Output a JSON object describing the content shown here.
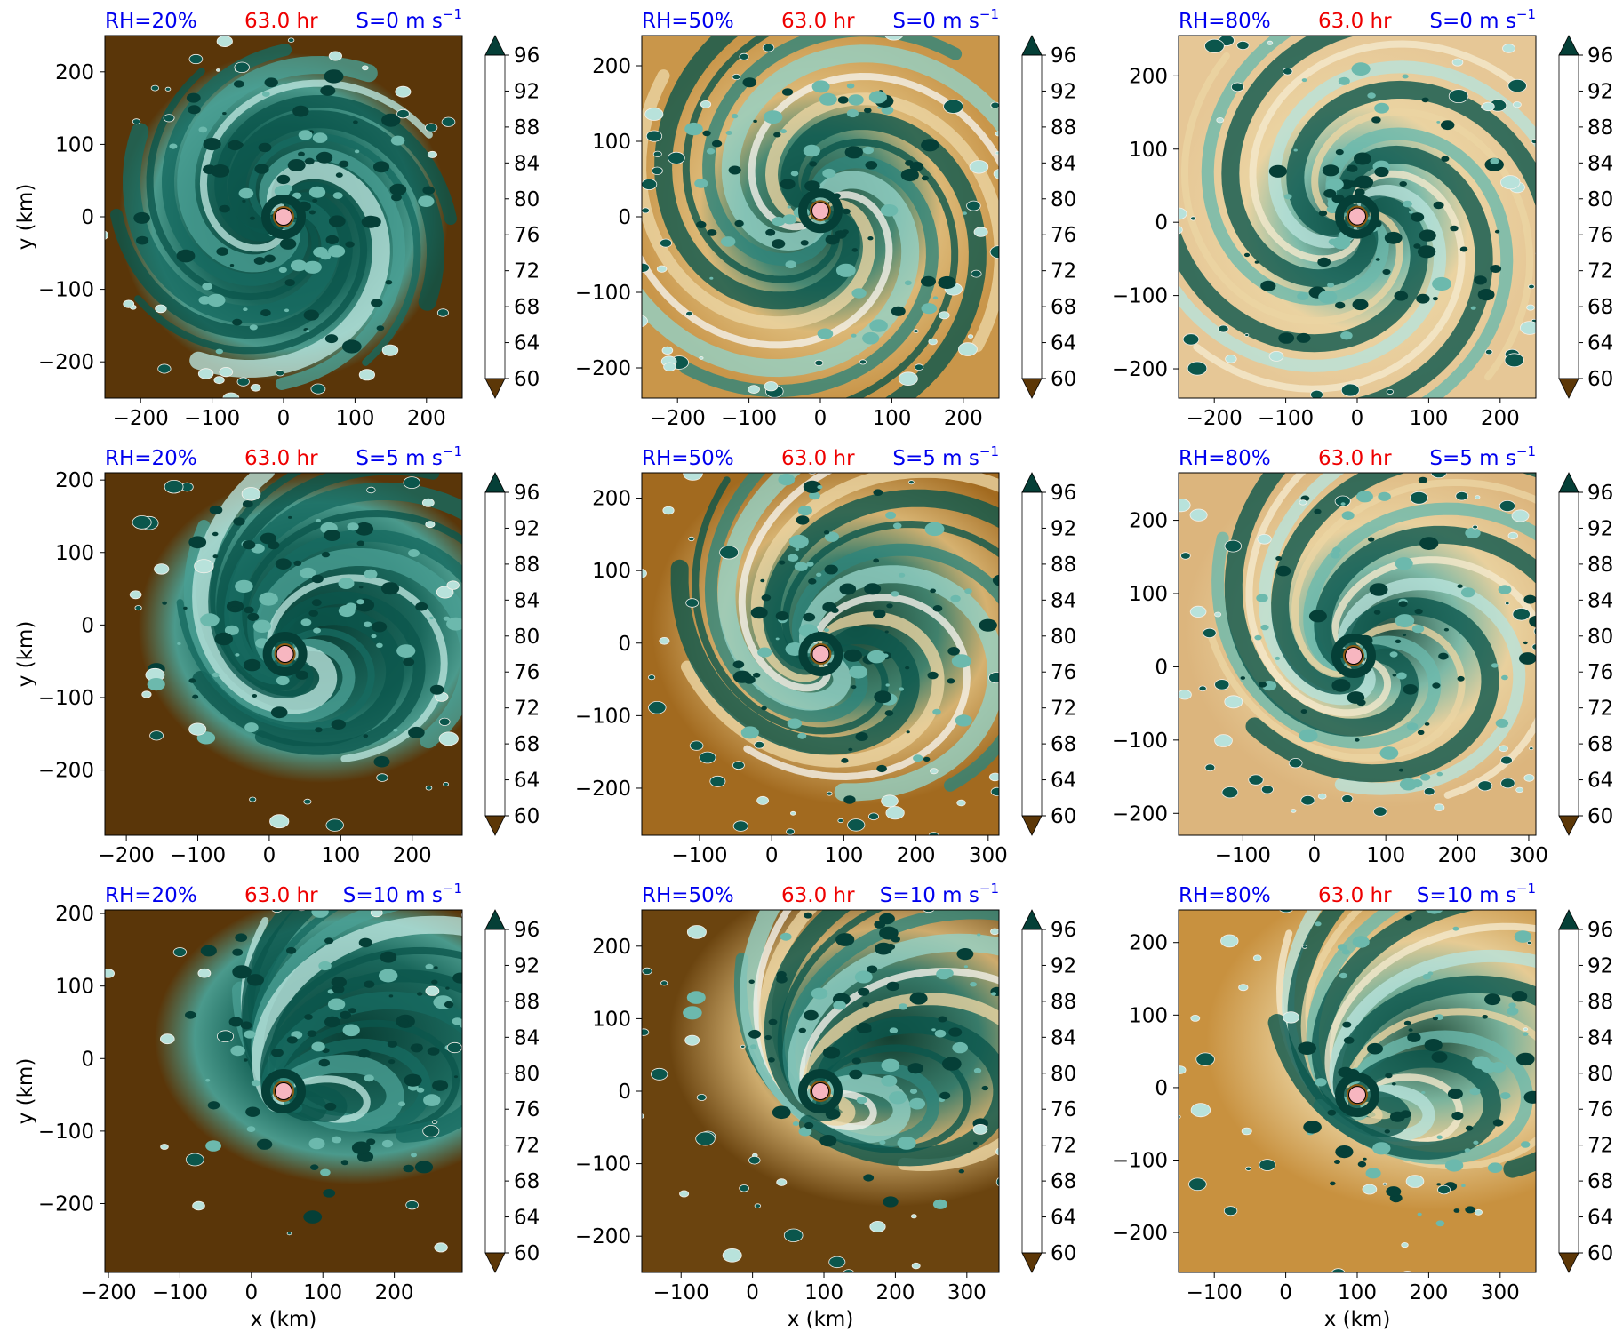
{
  "figure": {
    "colorbar_ticks": [
      60,
      64,
      68,
      72,
      76,
      80,
      84,
      88,
      92,
      96
    ],
    "colorbar_levels": [
      60,
      62,
      64,
      66,
      68,
      70,
      72,
      74,
      76,
      78,
      80,
      82,
      84,
      86,
      88,
      90,
      92,
      94,
      96,
      98
    ],
    "colorbar_colors": [
      "#5c3707",
      "#6f4710",
      "#8a5a14",
      "#a2691c",
      "#b57a2b",
      "#c38f45",
      "#d1a660",
      "#dfbe7e",
      "#ebd5a3",
      "#f4e8cc",
      "#f4f1ea",
      "#d8eeea",
      "#b8e2db",
      "#93d1c6",
      "#6cb9ad",
      "#4a9f93",
      "#2f857a",
      "#176a60",
      "#0b564c",
      "#053f37"
    ],
    "xlabel": "x (km)",
    "ylabel": "y (km)"
  },
  "chart_data": [
    {
      "type": "heatmap",
      "rh_label": "RH=20%",
      "time_label": "63.0 hr",
      "shear_label": "S=0 m s",
      "shear_sup": "−1",
      "xlim": [
        -250,
        250
      ],
      "ylim": [
        -250,
        250
      ],
      "xticks": [
        -200,
        -100,
        0,
        100,
        200
      ],
      "yticks": [
        -200,
        -100,
        0,
        100,
        200
      ],
      "center": [
        0,
        0
      ],
      "bg": "#5a3609",
      "moisture": "dry"
    },
    {
      "type": "heatmap",
      "rh_label": "RH=50%",
      "time_label": "63.0 hr",
      "shear_label": "S=0 m s",
      "shear_sup": "−1",
      "xlim": [
        -250,
        250
      ],
      "ylim": [
        -240,
        240
      ],
      "xticks": [
        -200,
        -100,
        0,
        100,
        200
      ],
      "yticks": [
        -200,
        -100,
        0,
        100,
        200
      ],
      "center": [
        0,
        8
      ],
      "bg": "#c9964a",
      "moisture": "mid"
    },
    {
      "type": "heatmap",
      "rh_label": "RH=80%",
      "time_label": "63.0 hr",
      "shear_label": "S=0 m s",
      "shear_sup": "−1",
      "xlim": [
        -250,
        250
      ],
      "ylim": [
        -240,
        255
      ],
      "xticks": [
        -200,
        -100,
        0,
        100,
        200
      ],
      "yticks": [
        -200,
        -100,
        0,
        100,
        200
      ],
      "center": [
        0,
        8
      ],
      "bg": "#e6c796",
      "moisture": "moist"
    },
    {
      "type": "heatmap",
      "rh_label": "RH=20%",
      "time_label": "63.0 hr",
      "shear_label": "S=5 m s",
      "shear_sup": "−1",
      "xlim": [
        -230,
        270
      ],
      "ylim": [
        -290,
        210
      ],
      "xticks": [
        -200,
        -100,
        0,
        100,
        200
      ],
      "yticks": [
        -200,
        -100,
        0,
        100,
        200
      ],
      "center": [
        22,
        -40
      ],
      "bg": "#5a3609",
      "moisture": "dry"
    },
    {
      "type": "heatmap",
      "rh_label": "RH=50%",
      "time_label": "63.0 hr",
      "shear_label": "S=5 m s",
      "shear_sup": "−1",
      "xlim": [
        -180,
        315
      ],
      "ylim": [
        -265,
        235
      ],
      "xticks": [
        -100,
        0,
        100,
        200,
        300
      ],
      "yticks": [
        -200,
        -100,
        0,
        100,
        200
      ],
      "center": [
        68,
        -15
      ],
      "bg": "#a26a1f",
      "moisture": "mid"
    },
    {
      "type": "heatmap",
      "rh_label": "RH=80%",
      "time_label": "63.0 hr",
      "shear_label": "S=5 m s",
      "shear_sup": "−1",
      "xlim": [
        -190,
        310
      ],
      "ylim": [
        -230,
        265
      ],
      "xticks": [
        -100,
        0,
        100,
        200,
        300
      ],
      "yticks": [
        -200,
        -100,
        0,
        100,
        200
      ],
      "center": [
        55,
        15
      ],
      "bg": "#dcb57d",
      "moisture": "moist"
    },
    {
      "type": "heatmap",
      "rh_label": "RH=20%",
      "time_label": "63.0 hr",
      "shear_label": "S=10 m s",
      "shear_sup": "−1",
      "xlim": [
        -205,
        295
      ],
      "ylim": [
        -295,
        205
      ],
      "xticks": [
        -200,
        -100,
        0,
        100,
        200
      ],
      "yticks": [
        -200,
        -100,
        0,
        100,
        200
      ],
      "center": [
        45,
        -45
      ],
      "bg": "#5a3609",
      "moisture": "dry"
    },
    {
      "type": "heatmap",
      "rh_label": "RH=50%",
      "time_label": "63.0 hr",
      "shear_label": "S=10 m s",
      "shear_sup": "−1",
      "xlim": [
        -155,
        345
      ],
      "ylim": [
        -250,
        250
      ],
      "xticks": [
        -100,
        0,
        100,
        200,
        300
      ],
      "yticks": [
        -200,
        -100,
        0,
        100,
        200
      ],
      "center": [
        95,
        0
      ],
      "bg": "#6b440f",
      "moisture": "mid"
    },
    {
      "type": "heatmap",
      "rh_label": "RH=80%",
      "time_label": "63.0 hr",
      "shear_label": "S=10 m s",
      "shear_sup": "−1",
      "xlim": [
        -150,
        350
      ],
      "ylim": [
        -255,
        245
      ],
      "xticks": [
        -100,
        0,
        100,
        200,
        300
      ],
      "yticks": [
        -200,
        -100,
        0,
        100,
        200
      ],
      "center": [
        100,
        -10
      ],
      "bg": "#c8913f",
      "moisture": "moist"
    }
  ]
}
